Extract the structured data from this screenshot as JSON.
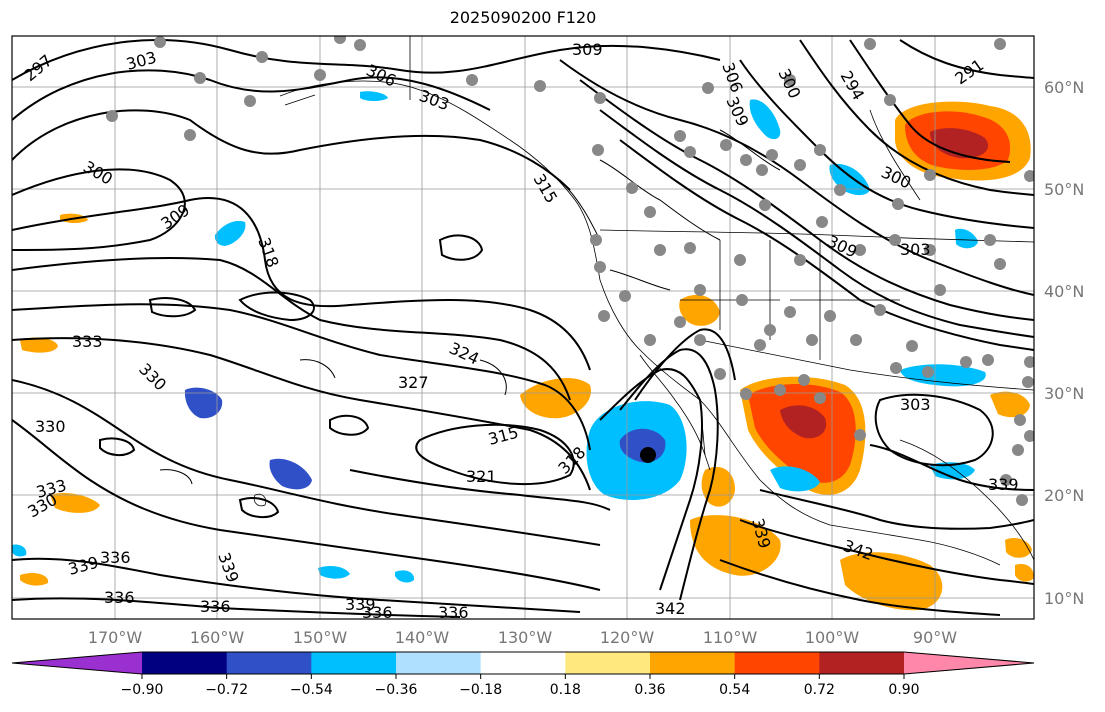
{
  "title": "2025090200 F120",
  "map": {
    "lon_labels": [
      "170°W",
      "160°W",
      "150°W",
      "140°W",
      "130°W",
      "120°W",
      "110°W",
      "100°W",
      "90°W"
    ],
    "lat_labels": [
      "60°N",
      "50°N",
      "40°N",
      "30°N",
      "20°N",
      "10°N"
    ],
    "contour_labels": [
      "297",
      "303",
      "306",
      "309",
      "303",
      "306",
      "300",
      "294",
      "291",
      "300",
      "309",
      "318",
      "315",
      "309",
      "303",
      "333",
      "330",
      "330",
      "324",
      "327",
      "315",
      "321",
      "318",
      "336",
      "339",
      "339",
      "336",
      "336",
      "339",
      "336",
      "336",
      "342",
      "342",
      "339",
      "339",
      "333",
      "330",
      "309",
      "303",
      "300"
    ]
  },
  "colorbar": {
    "colors": [
      "#9b30d0",
      "#000080",
      "#3050c8",
      "#00bfff",
      "#b0e0ff",
      "#ffffff",
      "#ffe97f",
      "#ffa500",
      "#ff4500",
      "#b22222",
      "#ff88aa"
    ],
    "tick_labels": [
      "−0.90",
      "−0.72",
      "−0.54",
      "−0.36",
      "−0.18",
      "0.18",
      "0.36",
      "0.54",
      "0.72",
      "0.90"
    ]
  }
}
